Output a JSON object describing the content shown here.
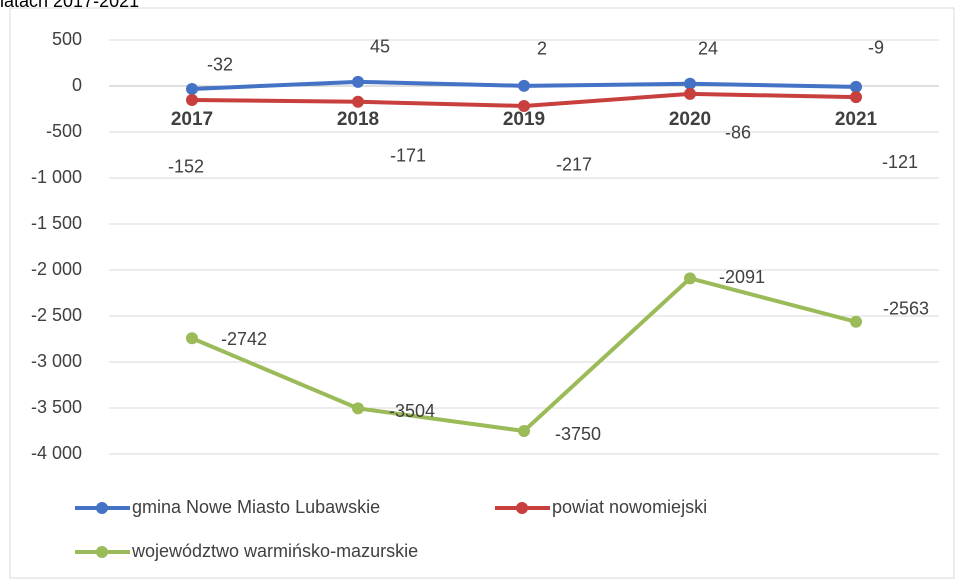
{
  "chart_data": {
    "type": "line",
    "title": "latach 2017-2021",
    "categories": [
      "2017",
      "2018",
      "2019",
      "2020",
      "2021"
    ],
    "series": [
      {
        "name": "gmina Nowe Miasto Lubawskie",
        "color": "#4472c4",
        "values": [
          -32,
          45,
          2,
          24,
          -9
        ]
      },
      {
        "name": "powiat nowomiejski",
        "color": "#c8403e",
        "values": [
          -152,
          -171,
          -217,
          -86,
          -121
        ]
      },
      {
        "name": "województwo warmińsko-mazurskie",
        "color": "#9bbb59",
        "values": [
          -2742,
          -3504,
          -3750,
          -2091,
          -2563
        ]
      }
    ],
    "ylim": [
      -4000,
      500
    ],
    "yticks": [
      500,
      0,
      -500,
      {
        "value": -1000,
        "label": "-1 000"
      },
      {
        "value": -1500,
        "label": "-1 500"
      },
      {
        "value": -2000,
        "label": "-2 000"
      },
      {
        "value": -2500,
        "label": "-2 500"
      },
      {
        "value": -3000,
        "label": "-3 000"
      },
      {
        "value": -3500,
        "label": "-3 500"
      },
      {
        "value": -4000,
        "label": "-4 000"
      }
    ],
    "grid": true
  }
}
